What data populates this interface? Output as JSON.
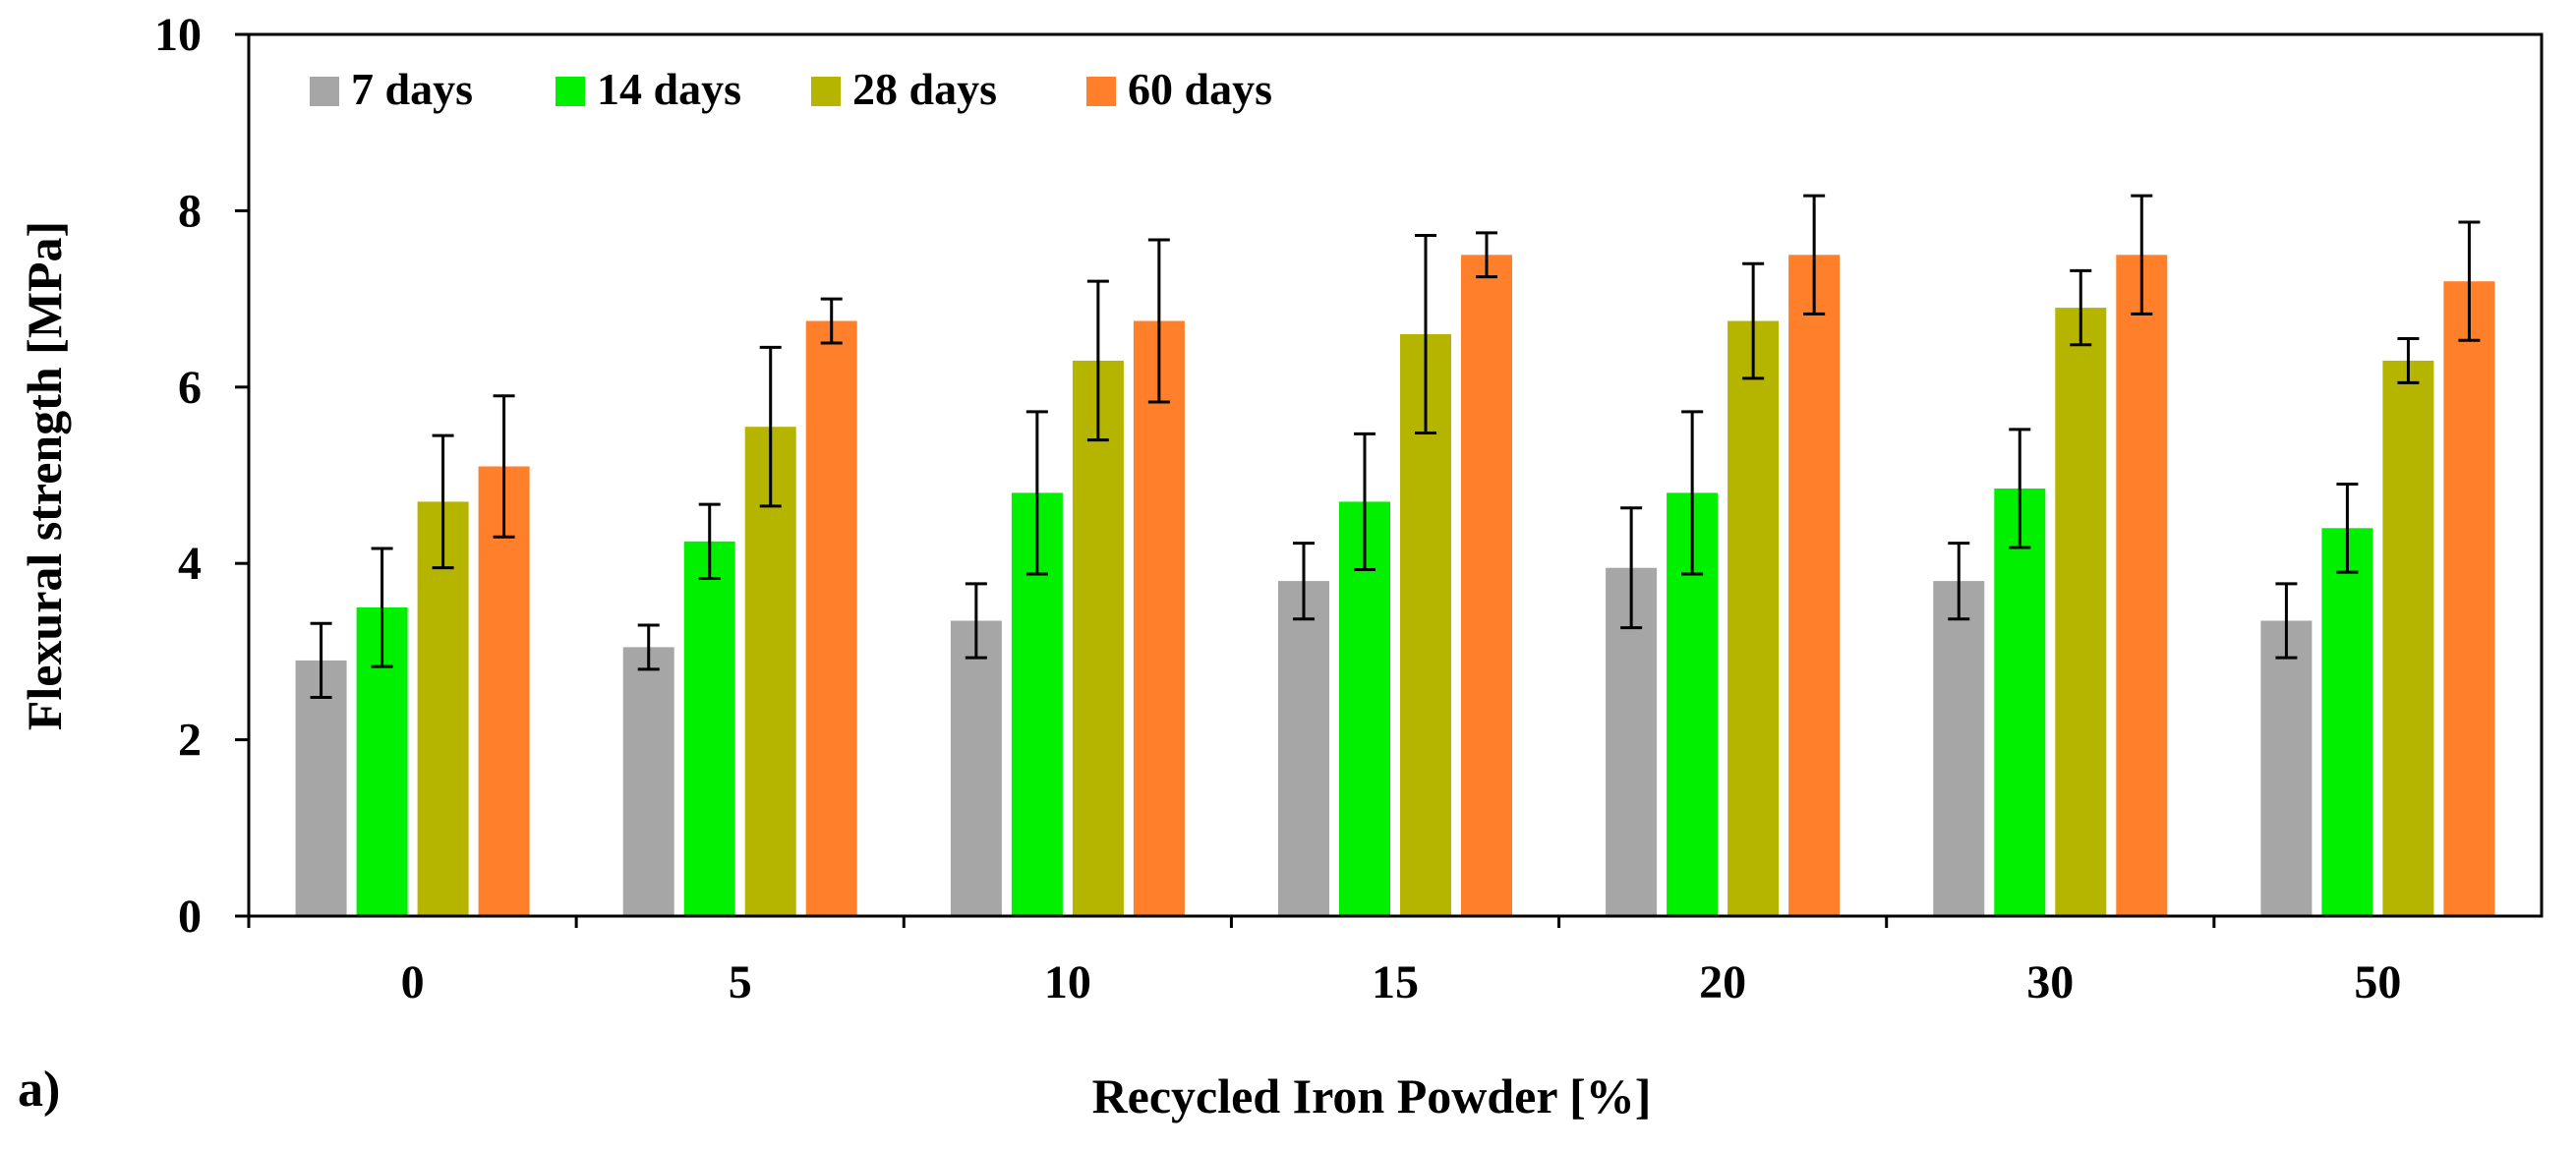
{
  "chart_data": {
    "type": "bar",
    "title": "",
    "panel_label": "a)",
    "xlabel": "Recycled Iron Powder [%]",
    "ylabel": "Flexural strength [MPa]",
    "ylim": [
      0,
      10
    ],
    "yticks": [
      "0",
      "2",
      "4",
      "6",
      "8",
      "10"
    ],
    "grid": false,
    "legend_position": "top-left",
    "categories": [
      "0",
      "5",
      "10",
      "15",
      "20",
      "30",
      "50"
    ],
    "series": [
      {
        "name": "7 days",
        "color": "#A6A6A6",
        "values": [
          2.9,
          3.05,
          3.35,
          3.8,
          3.95,
          3.8,
          3.35
        ],
        "errors": [
          0.42,
          0.25,
          0.42,
          0.43,
          0.68,
          0.43,
          0.42
        ]
      },
      {
        "name": "14 days",
        "color": "#00F000",
        "values": [
          3.5,
          4.25,
          4.8,
          4.7,
          4.8,
          4.85,
          4.4
        ],
        "errors": [
          0.67,
          0.42,
          0.92,
          0.77,
          0.92,
          0.67,
          0.5
        ]
      },
      {
        "name": "28 days",
        "color": "#B5B500",
        "values": [
          4.7,
          5.55,
          6.3,
          6.6,
          6.75,
          6.9,
          6.3
        ],
        "errors": [
          0.75,
          0.9,
          0.9,
          1.12,
          0.65,
          0.42,
          0.25
        ]
      },
      {
        "name": "60 days",
        "color": "#FF7F2A",
        "values": [
          5.1,
          6.75,
          6.75,
          7.5,
          7.5,
          7.5,
          7.2
        ],
        "errors": [
          0.8,
          0.25,
          0.92,
          0.25,
          0.67,
          0.67,
          0.67
        ]
      }
    ]
  }
}
